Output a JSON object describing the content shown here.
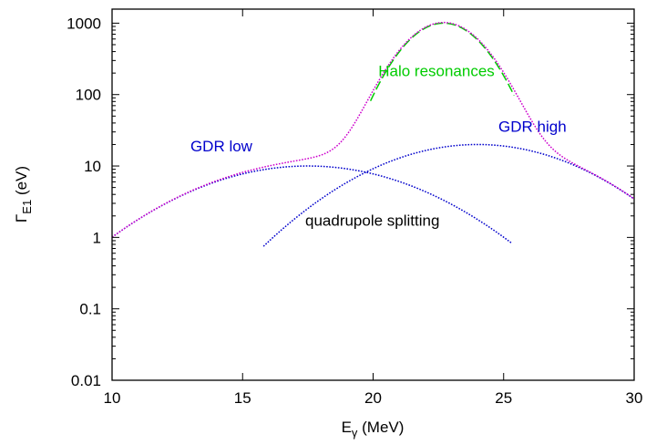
{
  "chart_data": {
    "type": "line",
    "title": "",
    "xlabel": {
      "main": "E",
      "sub": "γ",
      "rest": " (MeV)"
    },
    "ylabel": {
      "main": "Γ",
      "sub": "E1",
      "rest": " (eV)"
    },
    "xlim": [
      10,
      30
    ],
    "ylim": [
      0.01,
      1500
    ],
    "yscale": "log",
    "grid": false,
    "x_ticks": [
      {
        "value": 10,
        "label": "10"
      },
      {
        "value": 15,
        "label": "15"
      },
      {
        "value": 20,
        "label": "20"
      },
      {
        "value": 25,
        "label": "25"
      },
      {
        "value": 30,
        "label": "30"
      }
    ],
    "y_ticks": [
      {
        "value": 0.01,
        "label": "0.01"
      },
      {
        "value": 0.1,
        "label": "0.1"
      },
      {
        "value": 1,
        "label": "1"
      },
      {
        "value": 10,
        "label": "10"
      },
      {
        "value": 100,
        "label": "100"
      },
      {
        "value": 1000,
        "label": "1000"
      }
    ],
    "series": [
      {
        "key": "gdr_low",
        "color": "#0000cc",
        "dash": "dotted",
        "peak_energy": 17.5,
        "peak_value": 10,
        "width": 3.5,
        "x_range": [
          10,
          25.3
        ]
      },
      {
        "key": "gdr_high",
        "color": "#0000cc",
        "dash": "dotted",
        "peak_energy": 24.0,
        "peak_value": 20,
        "width": 3.2,
        "x_range": [
          15.8,
          30
        ]
      },
      {
        "key": "halo",
        "color": "#00cc00",
        "dash": "dashed",
        "peak_energy": 22.7,
        "peak_value": 1000,
        "width": 1.25,
        "x_range": [
          19.9,
          25.4
        ]
      },
      {
        "key": "sum",
        "color": "#cc00cc",
        "dash": "dotted",
        "x_range": [
          10,
          30
        ]
      }
    ],
    "annotations": [
      {
        "key": "halo_label",
        "text": "Halo resonances",
        "color": "#00cc00",
        "x": 20.2,
        "y": 180
      },
      {
        "key": "gdr_low_label",
        "text": "GDR low",
        "color": "#0000cc",
        "x": 13.0,
        "y": 16
      },
      {
        "key": "gdr_high_label",
        "text": "GDR high",
        "color": "#0000cc",
        "x": 24.8,
        "y": 30
      },
      {
        "key": "quadrupole_label",
        "text": "quadrupole splitting",
        "color": "#000000",
        "x": 17.4,
        "y": 1.45
      }
    ]
  }
}
